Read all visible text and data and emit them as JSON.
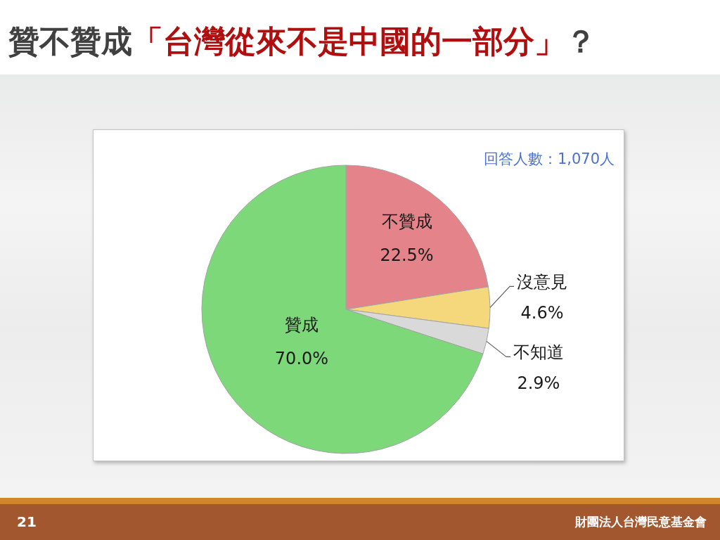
{
  "chart_data": {
    "type": "pie",
    "title": "贊不贊成「台灣從來不是中國的一部分」？",
    "categories": [
      "不贊成",
      "沒意見",
      "不知道",
      "贊成"
    ],
    "values": [
      22.5,
      4.6,
      2.9,
      70.0
    ],
    "colors": [
      "#e5838a",
      "#f5d77c",
      "#d9d9d9",
      "#7dd87a"
    ],
    "value_labels": [
      "22.5%",
      "4.6%",
      "2.9%",
      "70.0%"
    ],
    "annotations": [
      "回答人數：1,070人",
      "21",
      "財團法人台灣民意基金會"
    ]
  }
}
